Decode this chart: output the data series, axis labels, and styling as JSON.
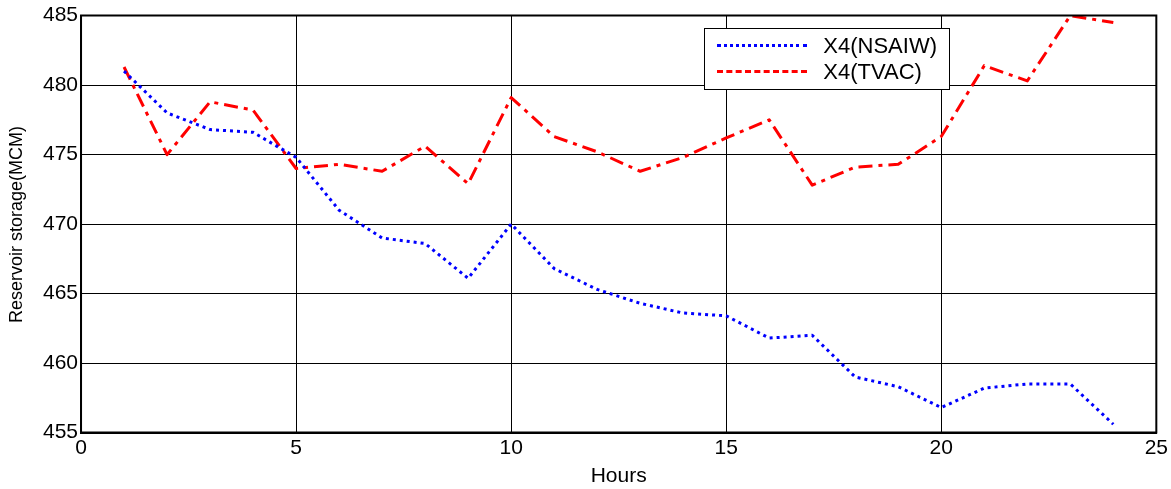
{
  "chart_data": {
    "type": "line",
    "xlabel": "Hours",
    "ylabel": "Reservoir storage(MCM)",
    "x": [
      1,
      2,
      3,
      4,
      5,
      6,
      7,
      8,
      9,
      10,
      11,
      12,
      13,
      14,
      15,
      16,
      17,
      18,
      19,
      20,
      21,
      22,
      23,
      24
    ],
    "series": [
      {
        "name": "X4(NSAIW)",
        "color": "#0000ff",
        "line_style": "dotted",
        "values": [
          481,
          478,
          476.8,
          476.6,
          474.8,
          471,
          469,
          468.6,
          466.1,
          470,
          466.8,
          465.3,
          464.3,
          463.6,
          463.4,
          461.8,
          462,
          459,
          458.3,
          456.8,
          458.2,
          458.5,
          458.5,
          455.6
        ]
      },
      {
        "name": "X4(TVAC)",
        "color": "#ff0000",
        "line_style": "dashed",
        "values": [
          481.3,
          475,
          478.8,
          478.2,
          474,
          474.3,
          473.8,
          475.6,
          472.9,
          479.1,
          476.3,
          475.2,
          473.8,
          474.8,
          476.2,
          477.5,
          472.8,
          474.1,
          474.3,
          476.3,
          481.4,
          480.3,
          485,
          484.5
        ]
      }
    ],
    "xlim": [
      0,
      25
    ],
    "xticks": [
      0,
      5,
      10,
      15,
      20,
      25
    ],
    "ylim": [
      455,
      485
    ],
    "yticks": [
      455,
      460,
      465,
      470,
      475,
      480,
      485
    ],
    "grid": true,
    "legend": "top right",
    "marker": "none"
  }
}
